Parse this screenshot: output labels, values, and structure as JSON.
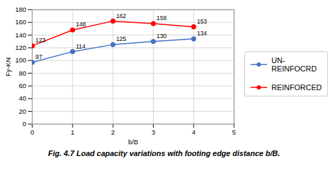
{
  "chart_data": {
    "type": "line",
    "x": [
      0,
      1,
      2,
      3,
      4
    ],
    "series": [
      {
        "name": "UN-\nREINFOCRD",
        "color": "#4472C4",
        "marker": "circle",
        "values": [
          97,
          114,
          125,
          130,
          134
        ]
      },
      {
        "name": "REINFORCED",
        "color": "#FF0000",
        "marker": "circle",
        "values": [
          123,
          148,
          162,
          158,
          153
        ]
      }
    ],
    "xlabel": "b/B",
    "ylabel": "Fy-KN",
    "xlim": [
      0,
      5
    ],
    "ylim": [
      0,
      180
    ],
    "xticks": [
      0,
      1,
      2,
      3,
      4,
      5
    ],
    "yticks": [
      0,
      20,
      40,
      60,
      80,
      100,
      120,
      140,
      160,
      180
    ],
    "grid": true,
    "data_labels": true,
    "legend": "right",
    "caption": "Fig. 4.7 Load capacity variations with footing edge distance b/B."
  }
}
